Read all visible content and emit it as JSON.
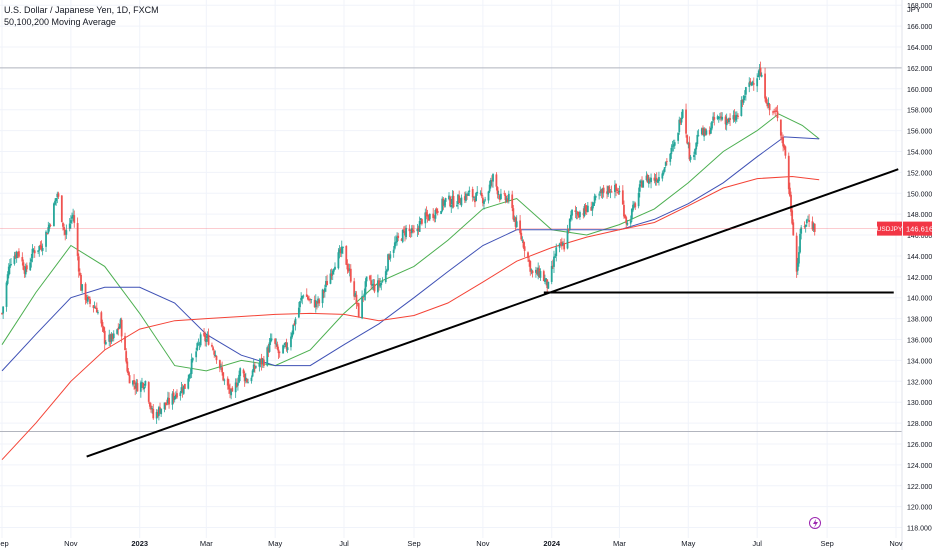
{
  "legend": {
    "title": "U.S. Dollar / Japanese Yen, 1D, FXCM",
    "indicator": "50,100,200 Moving Average"
  },
  "colors": {
    "up": "#26a69a",
    "down": "#ef5350",
    "ma50": "#4caf50",
    "ma100": "#3f51b5",
    "ma200": "#f44336",
    "trendline": "#000000",
    "grid": "#f0f3fa",
    "axis_text": "#131722",
    "price_tag": "#f23645"
  },
  "chart_data": {
    "type": "candlestick",
    "title": "U.S. Dollar / Japanese Yen, 1D, FXCM",
    "currency": "JPY",
    "symbol": "USDJPY",
    "last_price": "146.616",
    "ylim": [
      117.0,
      168.5
    ],
    "y_ticks": [
      "118.000",
      "120.000",
      "122.000",
      "124.000",
      "126.000",
      "128.000",
      "130.000",
      "132.000",
      "134.000",
      "136.000",
      "138.000",
      "140.000",
      "142.000",
      "144.000",
      "146.000",
      "148.000",
      "150.000",
      "152.000",
      "154.000",
      "156.000",
      "158.000",
      "160.000",
      "162.000",
      "164.000",
      "166.000",
      "168.000"
    ],
    "x_ticks": [
      {
        "label": "Sep",
        "date": "2022-09-01"
      },
      {
        "label": "Nov",
        "date": "2022-11-01"
      },
      {
        "label": "2023",
        "date": "2023-01-01",
        "bold": true
      },
      {
        "label": "Mar",
        "date": "2023-03-01"
      },
      {
        "label": "May",
        "date": "2023-05-01"
      },
      {
        "label": "Jul",
        "date": "2023-07-01"
      },
      {
        "label": "Sep",
        "date": "2023-09-01"
      },
      {
        "label": "Nov",
        "date": "2023-11-01"
      },
      {
        "label": "2024",
        "date": "2024-01-01",
        "bold": true
      },
      {
        "label": "Mar",
        "date": "2024-03-01"
      },
      {
        "label": "May",
        "date": "2024-05-01"
      },
      {
        "label": "Jul",
        "date": "2024-07-01"
      },
      {
        "label": "Sep",
        "date": "2024-09-01"
      },
      {
        "label": "Nov",
        "date": "2024-11-01"
      }
    ],
    "price_path": [
      [
        "2022-09-01",
        138.5
      ],
      [
        "2022-09-08",
        143.5
      ],
      [
        "2022-09-15",
        144.5
      ],
      [
        "2022-09-22",
        142.5
      ],
      [
        "2022-09-29",
        144.5
      ],
      [
        "2022-10-06",
        145.0
      ],
      [
        "2022-10-13",
        147.0
      ],
      [
        "2022-10-20",
        150.0
      ],
      [
        "2022-10-27",
        146.0
      ],
      [
        "2022-11-03",
        148.0
      ],
      [
        "2022-11-10",
        141.0
      ],
      [
        "2022-11-17",
        139.5
      ],
      [
        "2022-11-24",
        139.0
      ],
      [
        "2022-12-01",
        136.0
      ],
      [
        "2022-12-08",
        136.0
      ],
      [
        "2022-12-15",
        137.5
      ],
      [
        "2022-12-22",
        132.5
      ],
      [
        "2022-12-29",
        131.5
      ],
      [
        "2023-01-06",
        132.0
      ],
      [
        "2023-01-13",
        128.5
      ],
      [
        "2023-01-20",
        129.5
      ],
      [
        "2023-01-27",
        130.0
      ],
      [
        "2023-02-03",
        131.0
      ],
      [
        "2023-02-10",
        131.5
      ],
      [
        "2023-02-17",
        134.0
      ],
      [
        "2023-02-24",
        136.0
      ],
      [
        "2023-03-03",
        136.0
      ],
      [
        "2023-03-10",
        134.5
      ],
      [
        "2023-03-17",
        132.0
      ],
      [
        "2023-03-24",
        130.5
      ],
      [
        "2023-03-31",
        133.0
      ],
      [
        "2023-04-07",
        132.0
      ],
      [
        "2023-04-14",
        133.5
      ],
      [
        "2023-04-21",
        134.0
      ],
      [
        "2023-04-28",
        136.0
      ],
      [
        "2023-05-05",
        134.5
      ],
      [
        "2023-05-12",
        135.5
      ],
      [
        "2023-05-19",
        138.0
      ],
      [
        "2023-05-26",
        140.5
      ],
      [
        "2023-06-02",
        139.5
      ],
      [
        "2023-06-09",
        139.5
      ],
      [
        "2023-06-16",
        141.5
      ],
      [
        "2023-06-23",
        143.5
      ],
      [
        "2023-06-30",
        144.5
      ],
      [
        "2023-07-07",
        142.0
      ],
      [
        "2023-07-14",
        138.5
      ],
      [
        "2023-07-21",
        141.5
      ],
      [
        "2023-07-28",
        141.0
      ],
      [
        "2023-08-04",
        141.5
      ],
      [
        "2023-08-11",
        144.5
      ],
      [
        "2023-08-18",
        145.5
      ],
      [
        "2023-08-25",
        146.5
      ],
      [
        "2023-09-01",
        146.0
      ],
      [
        "2023-09-08",
        147.5
      ],
      [
        "2023-09-15",
        147.8
      ],
      [
        "2023-09-22",
        148.5
      ],
      [
        "2023-09-29",
        149.3
      ],
      [
        "2023-10-06",
        149.2
      ],
      [
        "2023-10-13",
        149.5
      ],
      [
        "2023-10-20",
        149.9
      ],
      [
        "2023-10-27",
        149.6
      ],
      [
        "2023-11-03",
        149.5
      ],
      [
        "2023-11-10",
        151.5
      ],
      [
        "2023-11-17",
        149.5
      ],
      [
        "2023-11-24",
        149.4
      ],
      [
        "2023-12-01",
        146.8
      ],
      [
        "2023-12-08",
        144.9
      ],
      [
        "2023-12-15",
        142.2
      ],
      [
        "2023-12-22",
        142.4
      ],
      [
        "2023-12-29",
        141.0
      ],
      [
        "2024-01-05",
        144.6
      ],
      [
        "2024-01-12",
        145.0
      ],
      [
        "2024-01-19",
        148.1
      ],
      [
        "2024-01-26",
        148.2
      ],
      [
        "2024-02-02",
        148.4
      ],
      [
        "2024-02-09",
        149.3
      ],
      [
        "2024-02-16",
        150.2
      ],
      [
        "2024-02-23",
        150.5
      ],
      [
        "2024-03-01",
        150.1
      ],
      [
        "2024-03-08",
        147.0
      ],
      [
        "2024-03-15",
        149.0
      ],
      [
        "2024-03-22",
        151.4
      ],
      [
        "2024-03-29",
        151.3
      ],
      [
        "2024-04-05",
        151.6
      ],
      [
        "2024-04-12",
        153.2
      ],
      [
        "2024-04-19",
        154.6
      ],
      [
        "2024-04-26",
        158.3
      ],
      [
        "2024-05-03",
        153.0
      ],
      [
        "2024-05-10",
        155.8
      ],
      [
        "2024-05-17",
        155.6
      ],
      [
        "2024-05-24",
        157.0
      ],
      [
        "2024-05-31",
        157.3
      ],
      [
        "2024-06-07",
        156.8
      ],
      [
        "2024-06-14",
        157.4
      ],
      [
        "2024-06-21",
        159.8
      ],
      [
        "2024-06-28",
        160.9
      ],
      [
        "2024-07-03",
        161.7
      ],
      [
        "2024-07-12",
        157.9
      ],
      [
        "2024-07-19",
        157.5
      ],
      [
        "2024-07-26",
        153.7
      ],
      [
        "2024-08-02",
        146.5
      ],
      [
        "2024-08-05",
        142.5
      ],
      [
        "2024-08-09",
        146.6
      ],
      [
        "2024-08-16",
        147.6
      ],
      [
        "2024-08-21",
        146.6
      ]
    ],
    "moving_averages": [
      {
        "name": "50",
        "color": "#4caf50",
        "points": [
          [
            "2022-09-01",
            135.5
          ],
          [
            "2022-10-01",
            140.5
          ],
          [
            "2022-11-01",
            145.0
          ],
          [
            "2022-12-01",
            143.0
          ],
          [
            "2023-01-01",
            138.5
          ],
          [
            "2023-02-01",
            133.5
          ],
          [
            "2023-03-01",
            133.0
          ],
          [
            "2023-04-01",
            134.0
          ],
          [
            "2023-05-01",
            133.5
          ],
          [
            "2023-06-01",
            135.0
          ],
          [
            "2023-07-01",
            138.5
          ],
          [
            "2023-08-01",
            141.5
          ],
          [
            "2023-09-01",
            143.0
          ],
          [
            "2023-10-01",
            145.5
          ],
          [
            "2023-11-01",
            148.5
          ],
          [
            "2023-12-01",
            149.5
          ],
          [
            "2024-01-01",
            146.5
          ],
          [
            "2024-02-01",
            146.0
          ],
          [
            "2024-03-01",
            147.0
          ],
          [
            "2024-04-01",
            148.5
          ],
          [
            "2024-05-01",
            151.0
          ],
          [
            "2024-06-01",
            154.0
          ],
          [
            "2024-07-01",
            156.0
          ],
          [
            "2024-07-20",
            157.6
          ],
          [
            "2024-08-10",
            156.5
          ],
          [
            "2024-08-25",
            155.2
          ]
        ]
      },
      {
        "name": "100",
        "color": "#3f51b5",
        "points": [
          [
            "2022-09-01",
            133.0
          ],
          [
            "2022-10-01",
            136.5
          ],
          [
            "2022-11-01",
            140.0
          ],
          [
            "2022-12-01",
            141.0
          ],
          [
            "2023-01-01",
            141.0
          ],
          [
            "2023-02-01",
            139.5
          ],
          [
            "2023-03-01",
            136.5
          ],
          [
            "2023-04-01",
            134.5
          ],
          [
            "2023-05-01",
            133.5
          ],
          [
            "2023-06-01",
            133.5
          ],
          [
            "2023-07-01",
            135.5
          ],
          [
            "2023-08-01",
            137.5
          ],
          [
            "2023-09-01",
            140.0
          ],
          [
            "2023-10-01",
            142.5
          ],
          [
            "2023-11-01",
            145.0
          ],
          [
            "2023-12-01",
            146.5
          ],
          [
            "2024-01-01",
            146.5
          ],
          [
            "2024-02-01",
            146.5
          ],
          [
            "2024-03-01",
            146.5
          ],
          [
            "2024-04-01",
            147.5
          ],
          [
            "2024-05-01",
            149.0
          ],
          [
            "2024-06-01",
            151.0
          ],
          [
            "2024-07-01",
            153.5
          ],
          [
            "2024-07-25",
            155.4
          ],
          [
            "2024-08-25",
            155.2
          ]
        ]
      },
      {
        "name": "200",
        "color": "#f44336",
        "points": [
          [
            "2022-09-01",
            124.5
          ],
          [
            "2022-10-01",
            128.0
          ],
          [
            "2022-11-01",
            132.0
          ],
          [
            "2022-12-01",
            135.0
          ],
          [
            "2023-01-01",
            137.0
          ],
          [
            "2023-02-01",
            137.8
          ],
          [
            "2023-03-01",
            138.0
          ],
          [
            "2023-04-01",
            138.2
          ],
          [
            "2023-05-01",
            138.4
          ],
          [
            "2023-06-01",
            138.5
          ],
          [
            "2023-07-01",
            138.4
          ],
          [
            "2023-08-01",
            137.8
          ],
          [
            "2023-09-01",
            138.3
          ],
          [
            "2023-10-01",
            139.5
          ],
          [
            "2023-11-01",
            141.5
          ],
          [
            "2023-12-01",
            143.5
          ],
          [
            "2024-01-01",
            144.8
          ],
          [
            "2024-02-01",
            145.8
          ],
          [
            "2024-03-01",
            146.5
          ],
          [
            "2024-04-01",
            147.2
          ],
          [
            "2024-05-01",
            148.8
          ],
          [
            "2024-06-01",
            150.5
          ],
          [
            "2024-07-01",
            151.4
          ],
          [
            "2024-08-01",
            151.6
          ],
          [
            "2024-08-25",
            151.3
          ]
        ]
      }
    ],
    "trendlines": [
      {
        "from": [
          "2022-11-15",
          124.8
        ],
        "to": [
          "2024-11-03",
          152.3
        ]
      },
      {
        "from": [
          "2023-12-25",
          140.5
        ],
        "to": [
          "2024-10-30",
          140.5
        ]
      }
    ],
    "horizontal_lines": [
      162.0,
      127.2
    ],
    "grid": true
  }
}
